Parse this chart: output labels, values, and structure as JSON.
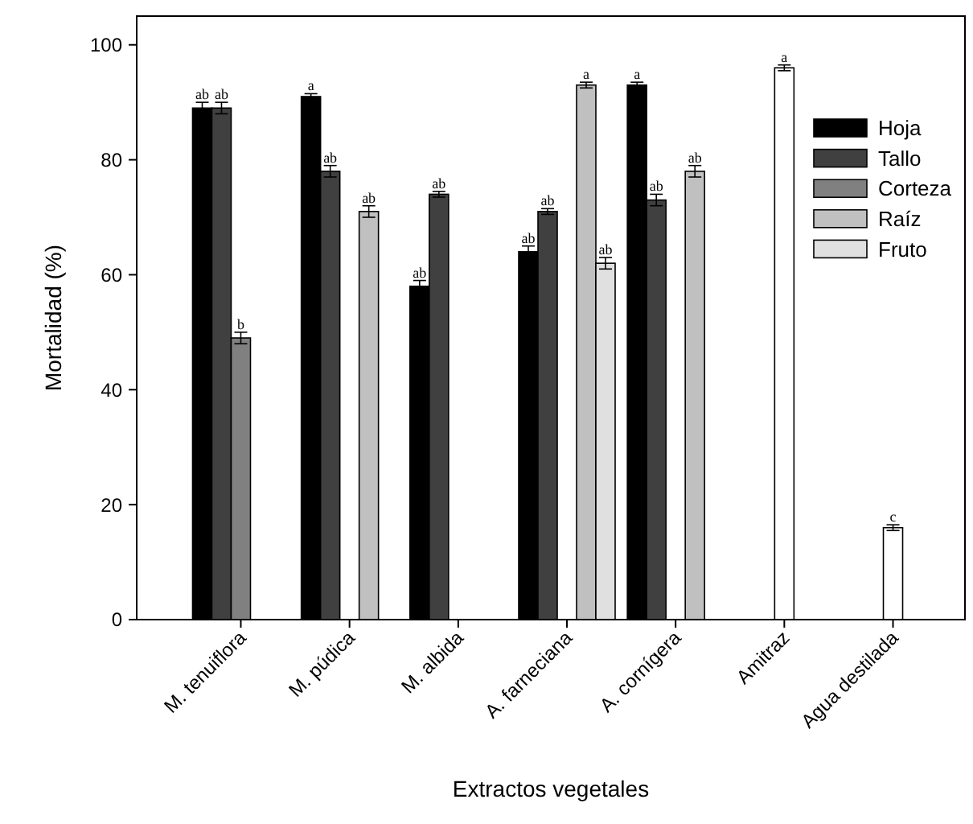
{
  "chart_data": {
    "type": "bar",
    "xlabel": "Extractos vegetales",
    "ylabel": "Mortalidad (%)",
    "categories": [
      "M. tenuiflora",
      "M. púdica",
      "M. albida",
      "A. farneciana",
      "A. cornígera",
      "Amitraz",
      "Agua destilada"
    ],
    "series": [
      {
        "name": "Hoja",
        "color": "#000000",
        "values": [
          89,
          91,
          58,
          64,
          93,
          null,
          null
        ],
        "errors": [
          1,
          0.5,
          1,
          1,
          0.5,
          null,
          null
        ],
        "value_labels": [
          "ab",
          "a",
          "ab",
          "ab",
          "a",
          null,
          null
        ]
      },
      {
        "name": "Tallo",
        "color": "#404040",
        "values": [
          89,
          78,
          74,
          71,
          73,
          null,
          null
        ],
        "errors": [
          1,
          1,
          0.5,
          0.5,
          1,
          null,
          null
        ],
        "value_labels": [
          "ab",
          "ab",
          "ab",
          "ab",
          "ab",
          null,
          null
        ]
      },
      {
        "name": "Corteza",
        "color": "#808080",
        "colors": [
          "#808080",
          "#808080",
          "#808080",
          "#808080",
          "#808080",
          "#ffffff",
          "#ffffff"
        ],
        "values": [
          49,
          null,
          null,
          null,
          null,
          96,
          16
        ],
        "errors": [
          1,
          null,
          null,
          null,
          null,
          0.5,
          0.5
        ],
        "value_labels": [
          "b",
          null,
          null,
          null,
          null,
          "a",
          "c"
        ]
      },
      {
        "name": "Raíz",
        "color": "#c0c0c0",
        "values": [
          null,
          71,
          null,
          93,
          78,
          null,
          null
        ],
        "errors": [
          null,
          1,
          null,
          0.5,
          1,
          null,
          null
        ],
        "value_labels": [
          null,
          "ab",
          null,
          "a",
          "ab",
          null,
          null
        ]
      },
      {
        "name": "Fruto",
        "color": "#e0e0e0",
        "values": [
          null,
          null,
          null,
          62,
          null,
          null,
          null
        ],
        "errors": [
          null,
          null,
          null,
          1,
          null,
          null,
          null
        ],
        "value_labels": [
          null,
          null,
          null,
          "ab",
          null,
          null,
          null
        ]
      }
    ],
    "ylim": [
      0,
      105
    ],
    "yticks": [
      0,
      20,
      40,
      60,
      80,
      100
    ],
    "grid": false,
    "legend": "top right"
  }
}
